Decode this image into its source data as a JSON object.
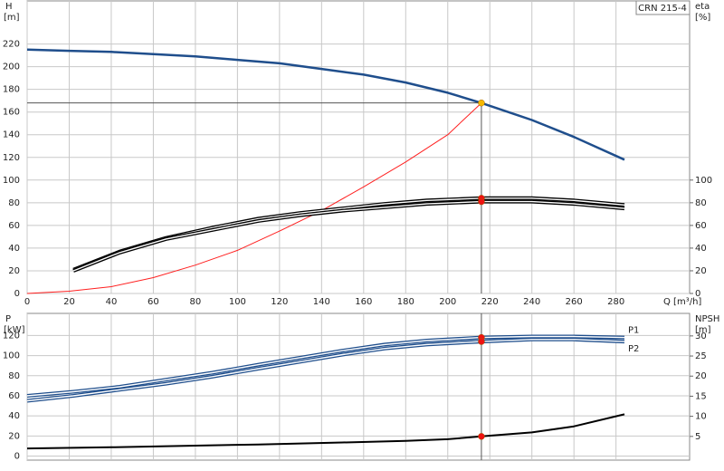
{
  "chart_data": [
    {
      "type": "line",
      "title": "CRN 215-4",
      "ylabel": "H",
      "yunit": "[m]",
      "y2label": "eta",
      "y2unit": "[%]",
      "xlabel": "Q [m³/h]",
      "xlim": [
        0,
        315
      ],
      "ylim": [
        0,
        258
      ],
      "y2lim": [
        0,
        258
      ],
      "xticks": [
        0,
        20,
        40,
        60,
        80,
        100,
        120,
        140,
        160,
        180,
        200,
        220,
        240,
        260,
        280
      ],
      "yticks": [
        0,
        20,
        40,
        60,
        80,
        100,
        120,
        140,
        160,
        180,
        200,
        220
      ],
      "y2ticks": [
        0,
        20,
        40,
        60,
        80,
        100
      ],
      "x_tick_labels": true,
      "grid": true,
      "series": [
        {
          "color": "#1f4e8c",
          "width": 2.5,
          "style": "solid",
          "x": [
            0,
            20,
            40,
            60,
            80,
            100,
            120,
            140,
            160,
            180,
            200,
            216,
            240,
            260,
            284
          ],
          "values": [
            215,
            214,
            213,
            211,
            209,
            206,
            203,
            198,
            193,
            186,
            177,
            168,
            153,
            138,
            118
          ]
        },
        {
          "color": "#ff2020",
          "width": 1,
          "style": "solid",
          "x": [
            0,
            20,
            40,
            60,
            80,
            100,
            120,
            140,
            160,
            180,
            200,
            216
          ],
          "values": [
            0,
            2,
            6,
            14,
            25,
            38,
            55,
            73,
            94,
            116,
            140,
            168
          ]
        },
        {
          "color": "#000000",
          "width": 4,
          "style": "double",
          "axis": "y2",
          "x": [
            22,
            44,
            66,
            88,
            110,
            130,
            150,
            170,
            190,
            216,
            240,
            260,
            284
          ],
          "values": [
            21,
            37,
            49,
            58,
            66,
            71,
            75,
            79,
            82,
            84,
            84,
            82,
            78
          ]
        },
        {
          "color": "#000000",
          "width": 4,
          "style": "double",
          "axis": "y2",
          "x": [
            22,
            44,
            66,
            88,
            110,
            130,
            150,
            170,
            190,
            216,
            240,
            260,
            284
          ],
          "values": [
            20,
            36,
            48,
            56,
            64,
            69,
            73,
            76,
            79,
            81,
            81,
            79,
            75
          ]
        }
      ],
      "points": [
        {
          "x": 216,
          "y": 168,
          "color": "#f5b800",
          "crosshair": "hv"
        },
        {
          "x": 216,
          "y": 84,
          "axis": "y2",
          "color": "#ee1111"
        },
        {
          "x": 216,
          "y": 81,
          "axis": "y2",
          "color": "#ee1111"
        }
      ]
    },
    {
      "type": "line",
      "ylabel": "P",
      "yunit": "[kW]",
      "y2label": "NPSH",
      "y2unit": "[m]",
      "xlim": [
        0,
        315
      ],
      "ylim": [
        -4,
        142
      ],
      "y2lim": [
        -0.9,
        35.6
      ],
      "xticks": [
        0,
        20,
        40,
        60,
        80,
        100,
        120,
        140,
        160,
        180,
        200,
        220,
        240,
        260,
        280
      ],
      "yticks": [
        0,
        20,
        40,
        60,
        80,
        100,
        120
      ],
      "y2ticks": [
        5,
        10,
        15,
        20,
        25,
        30
      ],
      "x_tick_labels": false,
      "grid": true,
      "series": [
        {
          "name": "P1",
          "color": "#1f4e8c",
          "width": 4,
          "style": "double",
          "x": [
            0,
            22,
            44,
            66,
            88,
            110,
            130,
            150,
            170,
            190,
            216,
            240,
            260,
            284
          ],
          "values": [
            60,
            64,
            69,
            76,
            83,
            91,
            98,
            105,
            111,
            115,
            118,
            119,
            119,
            118
          ]
        },
        {
          "name": "P2",
          "color": "#1f4e8c",
          "width": 4,
          "style": "double",
          "x": [
            0,
            22,
            44,
            66,
            88,
            110,
            130,
            150,
            170,
            190,
            216,
            240,
            260,
            284
          ],
          "values": [
            55,
            60,
            66,
            72,
            79,
            87,
            94,
            101,
            107,
            111,
            114,
            116,
            116,
            114
          ]
        },
        {
          "color": "#000000",
          "width": 2,
          "style": "solid",
          "axis": "y2",
          "x": [
            0,
            40,
            80,
            110,
            150,
            180,
            200,
            216,
            240,
            260,
            284
          ],
          "values": [
            2,
            2.3,
            2.7,
            3,
            3.5,
            3.9,
            4.3,
            5,
            6,
            7.5,
            10.5
          ]
        }
      ],
      "points": [
        {
          "x": 216,
          "y": 118,
          "color": "#ee1111",
          "crosshair": "v"
        },
        {
          "x": 216,
          "y": 114,
          "color": "#ee1111"
        },
        {
          "x": 216,
          "y": 5,
          "axis": "y2",
          "color": "#ee1111"
        }
      ]
    }
  ]
}
